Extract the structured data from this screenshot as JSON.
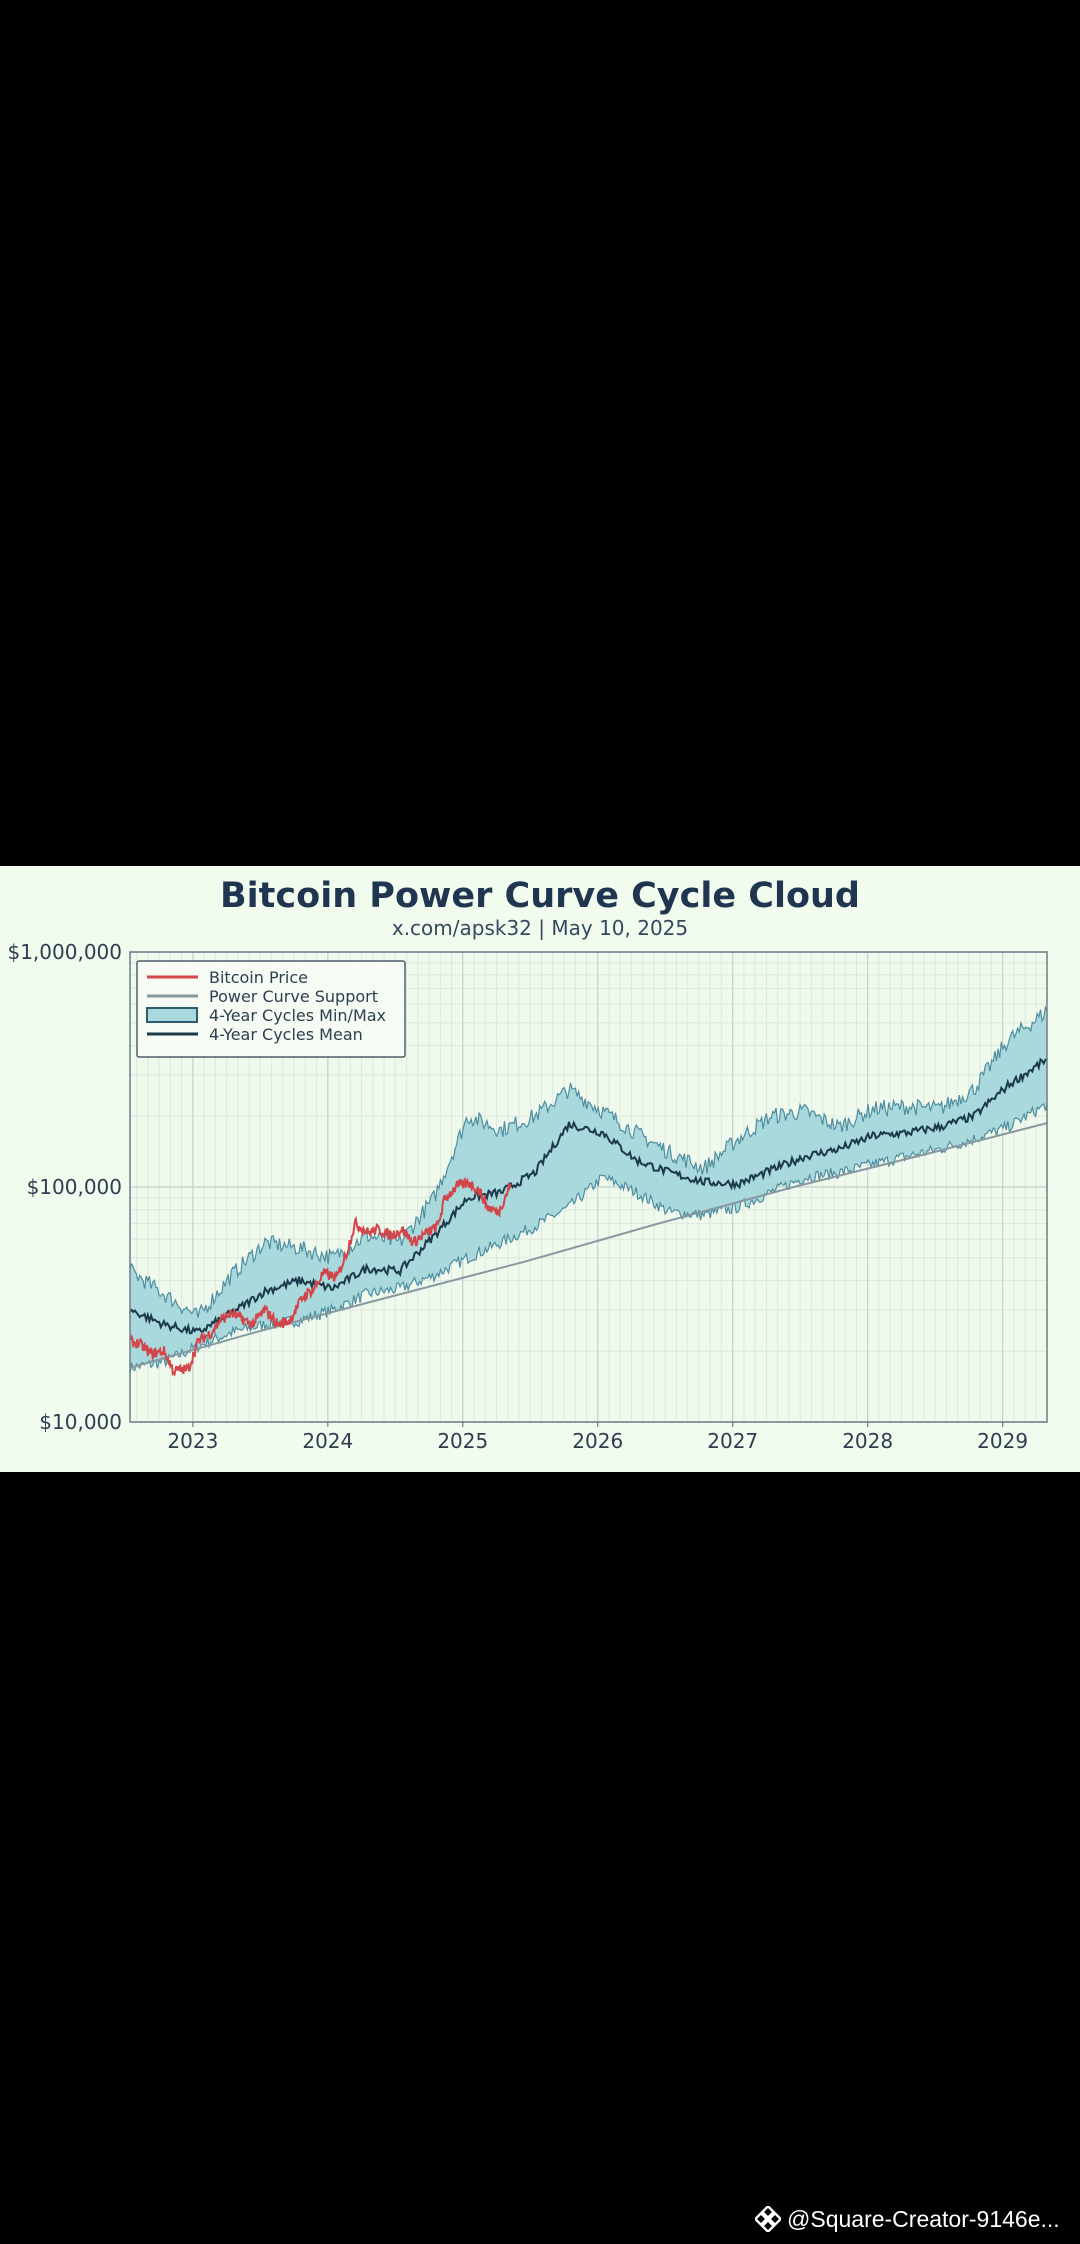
{
  "chart_data": {
    "type": "line",
    "title": "Bitcoin Power Curve Cycle Cloud",
    "subtitle": "x.com/apsk32 | May 10, 2025",
    "xlabel": "",
    "ylabel": "",
    "y_scale": "log",
    "xlim": [
      "2022-07-15",
      "2029-05-01"
    ],
    "ylim": [
      10000,
      1000000
    ],
    "x_ticks": [
      2023,
      2024,
      2025,
      2026,
      2027,
      2028,
      2029
    ],
    "x_tick_labels": [
      "2023",
      "2024",
      "2025",
      "2026",
      "2027",
      "2028",
      "2029"
    ],
    "y_ticks": [
      10000,
      100000,
      1000000
    ],
    "y_tick_labels": [
      "$10,000",
      "$100,000",
      "$1,000,000"
    ],
    "grid": true,
    "legend_position": "top-left",
    "legend": [
      "Bitcoin Price",
      "Power Curve Support",
      "4-Year Cycles Min/Max",
      "4-Year Cycles Mean"
    ],
    "colors": {
      "bitcoin_price": "#d1454b",
      "power_curve_support": "#8799a0",
      "cloud_fill": "#a9d9dc",
      "cloud_edge": "#4f8da0",
      "mean": "#1d3a4c",
      "background": "#f1fbee",
      "text": "#1f3550"
    },
    "series": [
      {
        "name": "Bitcoin Price",
        "x": [
          "2022-07-15",
          "2022-08-10",
          "2022-09-10",
          "2022-10-15",
          "2022-11-10",
          "2022-12-20",
          "2023-01-15",
          "2023-02-20",
          "2023-03-15",
          "2023-04-15",
          "2023-06-10",
          "2023-07-15",
          "2023-08-20",
          "2023-09-20",
          "2023-10-25",
          "2023-11-25",
          "2023-12-20",
          "2024-01-25",
          "2024-02-20",
          "2024-03-15",
          "2024-04-20",
          "2024-05-15",
          "2024-06-20",
          "2024-07-20",
          "2024-08-20",
          "2024-09-20",
          "2024-10-25",
          "2024-11-12",
          "2024-12-15",
          "2025-01-20",
          "2025-02-15",
          "2025-03-10",
          "2025-04-08",
          "2025-05-10"
        ],
        "values": [
          22000,
          21500,
          19500,
          20000,
          16500,
          16800,
          22000,
          24000,
          27000,
          29000,
          26000,
          30000,
          26000,
          27000,
          34000,
          37000,
          43000,
          41000,
          52000,
          70000,
          64000,
          66000,
          62000,
          66000,
          58000,
          63000,
          68000,
          88000,
          101000,
          104000,
          96000,
          82000,
          78000,
          103000
        ]
      },
      {
        "name": "Power Curve Support",
        "x": [
          "2022-07-15",
          "2023-06-15",
          "2024-06-15",
          "2025-06-15",
          "2026-06-15",
          "2027-06-15",
          "2028-06-15",
          "2029-05-01"
        ],
        "values": [
          17000,
          24000,
          34000,
          48000,
          70000,
          100000,
          139000,
          187000
        ]
      },
      {
        "name": "4-Year Cycles Min/Max (min)",
        "x": [
          "2022-07-15",
          "2022-10-15",
          "2023-01-15",
          "2023-04-15",
          "2023-07-15",
          "2023-10-15",
          "2024-01-15",
          "2024-04-15",
          "2024-07-15",
          "2024-10-15",
          "2025-01-15",
          "2025-04-15",
          "2025-07-15",
          "2025-10-15",
          "2026-01-15",
          "2026-04-15",
          "2026-07-15",
          "2026-10-15",
          "2027-01-15",
          "2027-04-15",
          "2027-07-15",
          "2027-10-15",
          "2028-01-15",
          "2028-04-15",
          "2028-07-15",
          "2028-10-15",
          "2029-01-15",
          "2029-05-01"
        ],
        "values": [
          17000,
          18000,
          21000,
          24000,
          26000,
          27000,
          30000,
          35000,
          37000,
          42000,
          50000,
          58000,
          68000,
          82000,
          110000,
          95000,
          78000,
          76000,
          82000,
          95000,
          110000,
          115000,
          125000,
          135000,
          145000,
          160000,
          180000,
          225000
        ]
      },
      {
        "name": "4-Year Cycles Min/Max (max)",
        "x": [
          "2022-07-15",
          "2022-10-15",
          "2023-01-15",
          "2023-04-15",
          "2023-07-15",
          "2023-10-15",
          "2024-01-15",
          "2024-04-15",
          "2024-07-15",
          "2024-10-15",
          "2025-01-15",
          "2025-04-15",
          "2025-07-15",
          "2025-10-15",
          "2026-01-15",
          "2026-04-15",
          "2026-07-15",
          "2026-10-15",
          "2027-01-15",
          "2027-04-15",
          "2027-07-15",
          "2027-10-15",
          "2028-01-15",
          "2028-04-15",
          "2028-07-15",
          "2028-10-15",
          "2029-01-15",
          "2029-05-01"
        ],
        "values": [
          44000,
          35000,
          28000,
          42000,
          58000,
          55000,
          50000,
          62000,
          58000,
          90000,
          200000,
          175000,
          200000,
          260000,
          210000,
          170000,
          140000,
          120000,
          160000,
          200000,
          210000,
          180000,
          215000,
          220000,
          215000,
          260000,
          420000,
          560000
        ]
      },
      {
        "name": "4-Year Cycles Mean",
        "x": [
          "2022-07-15",
          "2022-10-15",
          "2023-01-15",
          "2023-04-15",
          "2023-07-15",
          "2023-10-15",
          "2024-01-15",
          "2024-04-15",
          "2024-07-15",
          "2024-10-15",
          "2025-01-15",
          "2025-04-15",
          "2025-07-15",
          "2025-10-15",
          "2026-01-15",
          "2026-04-15",
          "2026-07-15",
          "2026-10-15",
          "2027-01-15",
          "2027-04-15",
          "2027-07-15",
          "2027-10-15",
          "2028-01-15",
          "2028-04-15",
          "2028-07-15",
          "2028-10-15",
          "2029-01-15",
          "2029-05-01"
        ],
        "values": [
          30000,
          26000,
          24000,
          29000,
          36000,
          40000,
          37000,
          45000,
          44000,
          62000,
          90000,
          95000,
          115000,
          185000,
          170000,
          130000,
          115000,
          105000,
          103000,
          118000,
          135000,
          145000,
          165000,
          170000,
          180000,
          200000,
          270000,
          350000
        ]
      }
    ]
  },
  "watermark": {
    "text": "@Square-Creator-9146e...",
    "icon": "binance-logo-icon"
  }
}
